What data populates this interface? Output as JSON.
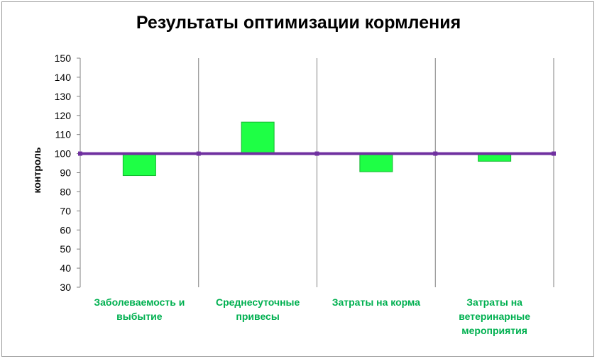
{
  "chart_data": {
    "type": "bar",
    "title": "Результаты оптимизации кормления",
    "xlabel": "",
    "ylabel": "контроль",
    "ylim": [
      30,
      150
    ],
    "ytick_step": 10,
    "baseline": 100,
    "categories": [
      "Заболеваемость и выбытие",
      "Среднесуточные привесы",
      "Затраты на корма",
      "Затраты на ветеринарные мероприятия"
    ],
    "category_label_lines": [
      [
        "Заболеваемость и",
        "выбытие"
      ],
      [
        "Среднесуточные",
        "привесы"
      ],
      [
        "Затраты на корма"
      ],
      [
        "Затраты на",
        "ветеринарные",
        "мероприятия"
      ]
    ],
    "values": [
      88.5,
      116.5,
      90.5,
      96
    ],
    "grid": false,
    "colors": {
      "bar_fill": "#1eff45",
      "bar_stroke": "#12b82f",
      "baseline": "#7030a0",
      "category_text": "#00b050",
      "separator": "#808080",
      "axis": "#808080"
    }
  }
}
